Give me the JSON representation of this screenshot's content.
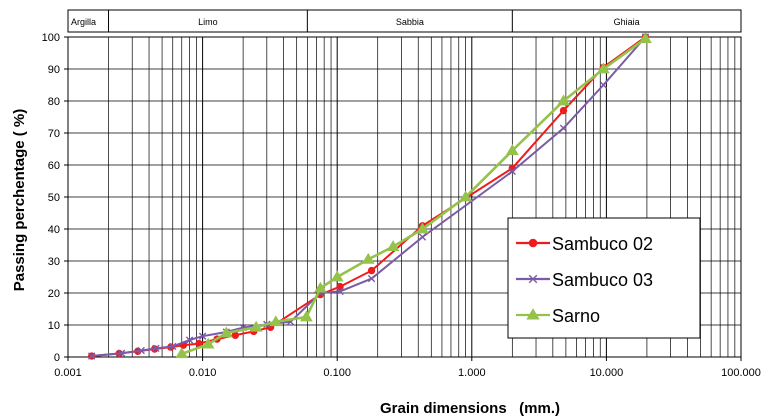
{
  "chart_data": {
    "type": "line",
    "x_scale": "log",
    "xlim": [
      0.001,
      100
    ],
    "ylim": [
      0,
      100
    ],
    "grid": true,
    "legend_position": "right",
    "xlabel": "Grain dimensions   (mm.)",
    "ylabel": "Passing perchentage  ( %)",
    "x_tick_labels": [
      "0.001",
      "0.010",
      "0.100",
      "1.000",
      "10.000",
      "100.000"
    ],
    "y_ticks": [
      0,
      10,
      20,
      30,
      40,
      50,
      60,
      70,
      80,
      90,
      100
    ],
    "soil_bands": [
      {
        "label": "Argilla",
        "from": 0.001,
        "to": 0.002
      },
      {
        "label": "Limo",
        "from": 0.002,
        "to": 0.06
      },
      {
        "label": "Sabbia",
        "from": 0.06,
        "to": 2
      },
      {
        "label": "Ghiaia",
        "from": 2,
        "to": 100
      }
    ],
    "series": [
      {
        "name": "Sambuco 02",
        "color": "#ee1c1c",
        "marker": "circle",
        "x": [
          0.0015,
          0.0024,
          0.0033,
          0.0044,
          0.0058,
          0.0072,
          0.0094,
          0.0128,
          0.0175,
          0.024,
          0.032,
          0.075,
          0.105,
          0.18,
          0.43,
          2.0,
          4.8,
          9.5,
          19.5
        ],
        "y": [
          0.3,
          1.1,
          1.8,
          2.5,
          3.1,
          3.7,
          4.2,
          5.6,
          6.8,
          8.0,
          9.3,
          19.5,
          22.0,
          27.0,
          41.0,
          59.0,
          77.0,
          90.5,
          100
        ]
      },
      {
        "name": "Sambuco 03",
        "color": "#7b5aa6",
        "marker": "x",
        "x": [
          0.0015,
          0.0025,
          0.0035,
          0.0045,
          0.006,
          0.008,
          0.01,
          0.015,
          0.02,
          0.03,
          0.045,
          0.075,
          0.105,
          0.18,
          0.43,
          2.0,
          4.8,
          9.5,
          19.5
        ],
        "y": [
          0.3,
          1.2,
          2.0,
          2.7,
          3.3,
          5.3,
          6.5,
          7.8,
          9.2,
          10.2,
          11.0,
          20.0,
          20.5,
          24.5,
          37.5,
          58.0,
          71.5,
          85.0,
          100
        ]
      },
      {
        "name": "Sarno",
        "color": "#94c24a",
        "marker": "triangle",
        "x": [
          0.007,
          0.011,
          0.015,
          0.025,
          0.035,
          0.059,
          0.075,
          0.1,
          0.17,
          0.26,
          0.43,
          0.9,
          2.0,
          4.8,
          9.5,
          19.5
        ],
        "y": [
          1.0,
          4.0,
          7.5,
          9.3,
          11.0,
          12.5,
          21.5,
          25.0,
          30.5,
          34.5,
          40.0,
          50.0,
          64.5,
          80.0,
          90.0,
          99.5
        ]
      }
    ]
  }
}
